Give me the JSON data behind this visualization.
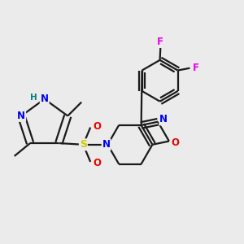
{
  "background_color": "#ebebeb",
  "bond_color": "#1a1a1a",
  "atom_colors": {
    "N": "#0000ee",
    "O": "#ee0000",
    "S": "#cccc00",
    "F": "#ee00ee",
    "H": "#008080",
    "C": "#1a1a1a"
  },
  "figsize": [
    3.0,
    3.0
  ],
  "dpi": 100,
  "lw": 1.6,
  "double_sep": 0.012
}
